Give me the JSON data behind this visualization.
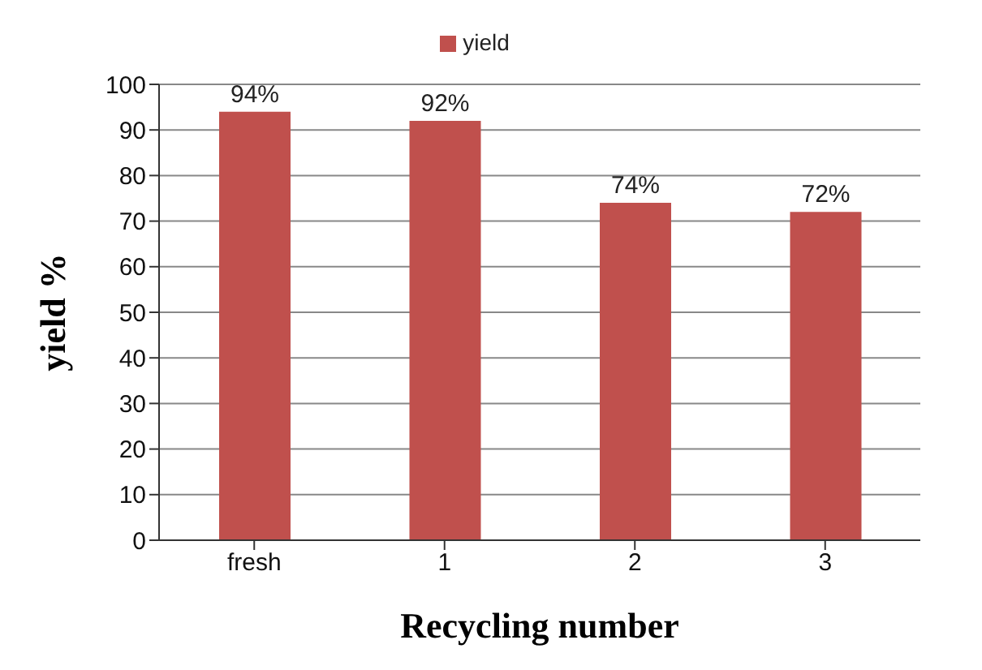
{
  "chart_data": {
    "type": "bar",
    "xlabel": "Recycling  number",
    "ylabel": "yield  %",
    "categories": [
      "fresh",
      "1",
      "2",
      "3"
    ],
    "series": [
      {
        "name": "yield",
        "color": "#c0504d",
        "values": [
          94,
          92,
          74,
          72
        ],
        "value_labels": [
          "94%",
          "92%",
          "74%",
          "72%"
        ]
      }
    ],
    "ylim": [
      0,
      100
    ],
    "yticks": [
      0,
      10,
      20,
      30,
      40,
      50,
      60,
      70,
      80,
      90,
      100
    ],
    "grid": "y",
    "legend": "top"
  }
}
